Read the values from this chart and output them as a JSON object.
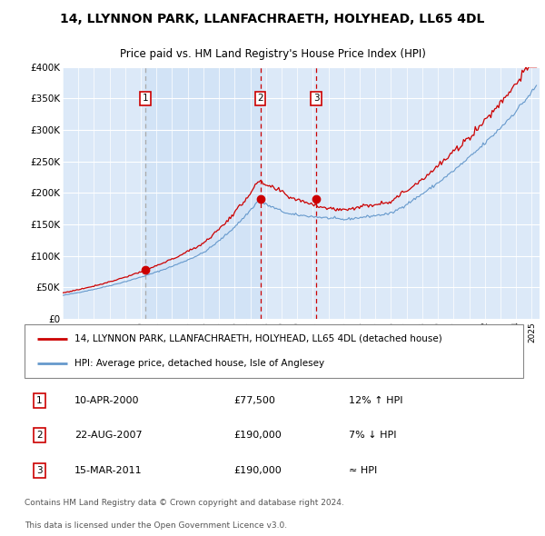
{
  "title1": "14, LLYNNON PARK, LLANFACHRAETH, HOLYHEAD, LL65 4DL",
  "title2": "Price paid vs. HM Land Registry's House Price Index (HPI)",
  "red_line_label": "14, LLYNNON PARK, LLANFACHRAETH, HOLYHEAD, LL65 4DL (detached house)",
  "blue_line_label": "HPI: Average price, detached house, Isle of Anglesey",
  "sale_points": [
    {
      "num": 1,
      "date": "10-APR-2000",
      "year": 2000.27,
      "price": 77500,
      "hpi_rel": "12% ↑ HPI"
    },
    {
      "num": 2,
      "date": "22-AUG-2007",
      "year": 2007.64,
      "price": 190000,
      "hpi_rel": "7% ↓ HPI"
    },
    {
      "num": 3,
      "date": "15-MAR-2011",
      "year": 2011.21,
      "price": 190000,
      "hpi_rel": "≈ HPI"
    }
  ],
  "ylabel_ticks": [
    "£0",
    "£50K",
    "£100K",
    "£150K",
    "£200K",
    "£250K",
    "£300K",
    "£350K",
    "£400K"
  ],
  "ytick_values": [
    0,
    50000,
    100000,
    150000,
    200000,
    250000,
    300000,
    350000,
    400000
  ],
  "xmin": 1995.0,
  "xmax": 2025.5,
  "ymin": 0,
  "ymax": 400000,
  "bg_color": "#dce9f8",
  "red_color": "#cc0000",
  "blue_color": "#6699cc",
  "grid_color": "#ffffff",
  "footer1": "Contains HM Land Registry data © Crown copyright and database right 2024.",
  "footer2": "This data is licensed under the Open Government Licence v3.0."
}
